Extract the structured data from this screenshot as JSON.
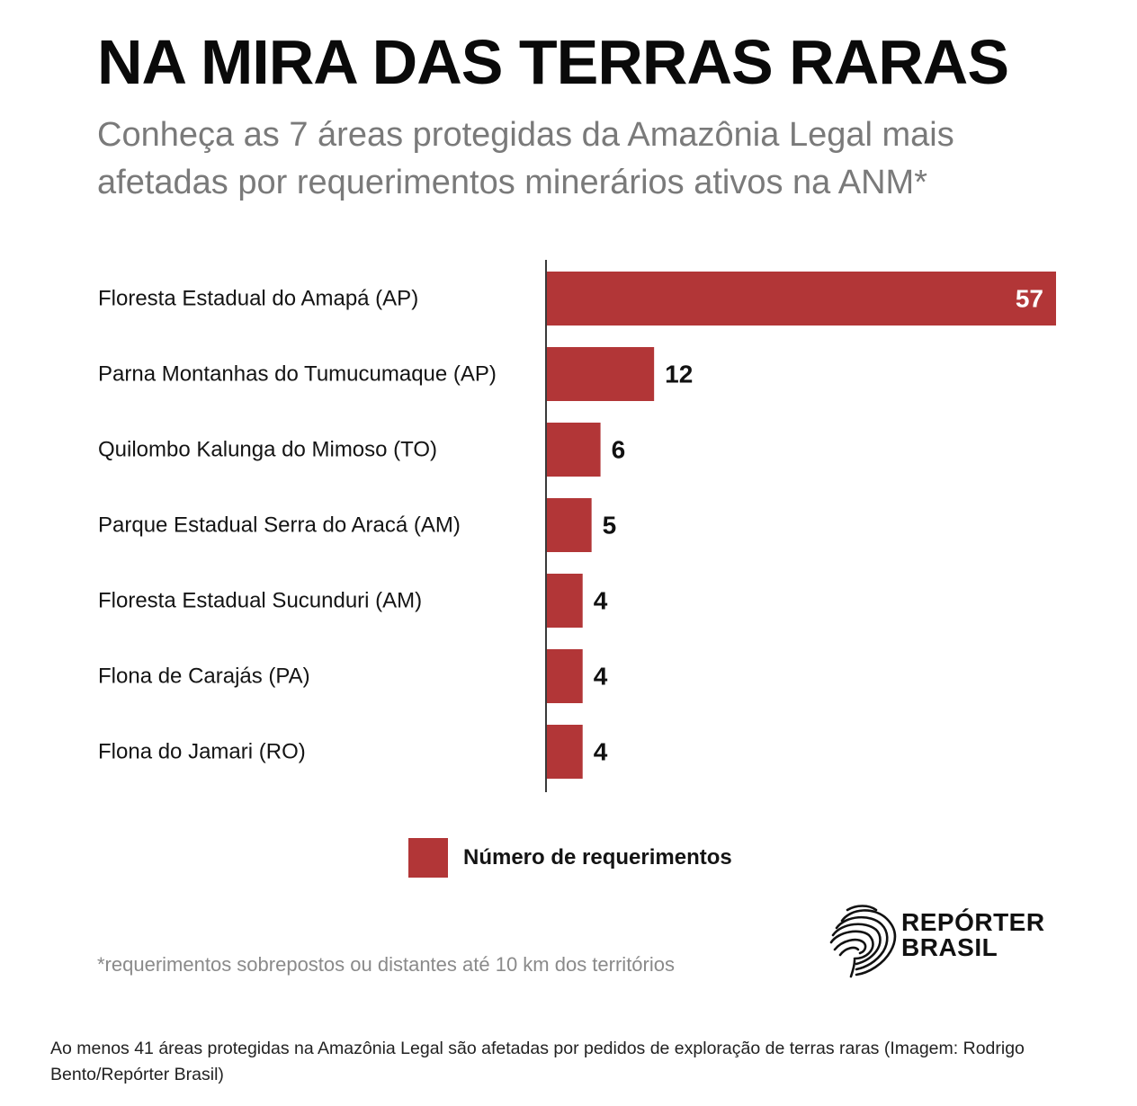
{
  "title": "NA MIRA DAS TERRAS RARAS",
  "subtitle": "Conheça as 7 áreas protegidas da Amazônia Legal mais afetadas por requerimentos minerários ativos na ANM*",
  "chart_data": {
    "type": "bar",
    "orientation": "horizontal",
    "categories": [
      "Floresta Estadual do Amapá (AP)",
      "Parna Montanhas do Tumucumaque (AP)",
      "Quilombo Kalunga do Mimoso (TO)",
      "Parque Estadual Serra do Aracá (AM)",
      "Floresta Estadual Sucunduri (AM)",
      "Flona de Carajás (PA)",
      "Flona do Jamari (RO)"
    ],
    "series": [
      {
        "name": "Número de requerimentos",
        "values": [
          57,
          12,
          6,
          5,
          4,
          4,
          4
        ],
        "color": "#b23637"
      }
    ],
    "xlim": [
      0,
      57
    ],
    "grid": false,
    "data_labels": true,
    "legend_position": "bottom-center"
  },
  "legend": {
    "label": "Número de requerimentos",
    "color": "#b23637"
  },
  "footnote": "*requerimentos sobrepostos ou distantes até 10 km dos territórios",
  "logo": {
    "line1": "REPÓRTER",
    "line2": "BRASIL",
    "icon": "brazil-fingerprint-icon"
  },
  "caption": "Ao menos 41 áreas protegidas na Amazônia Legal são afetadas por pedidos de exploração de terras raras (Imagem: Rodrigo Bento/Repórter Brasil)"
}
